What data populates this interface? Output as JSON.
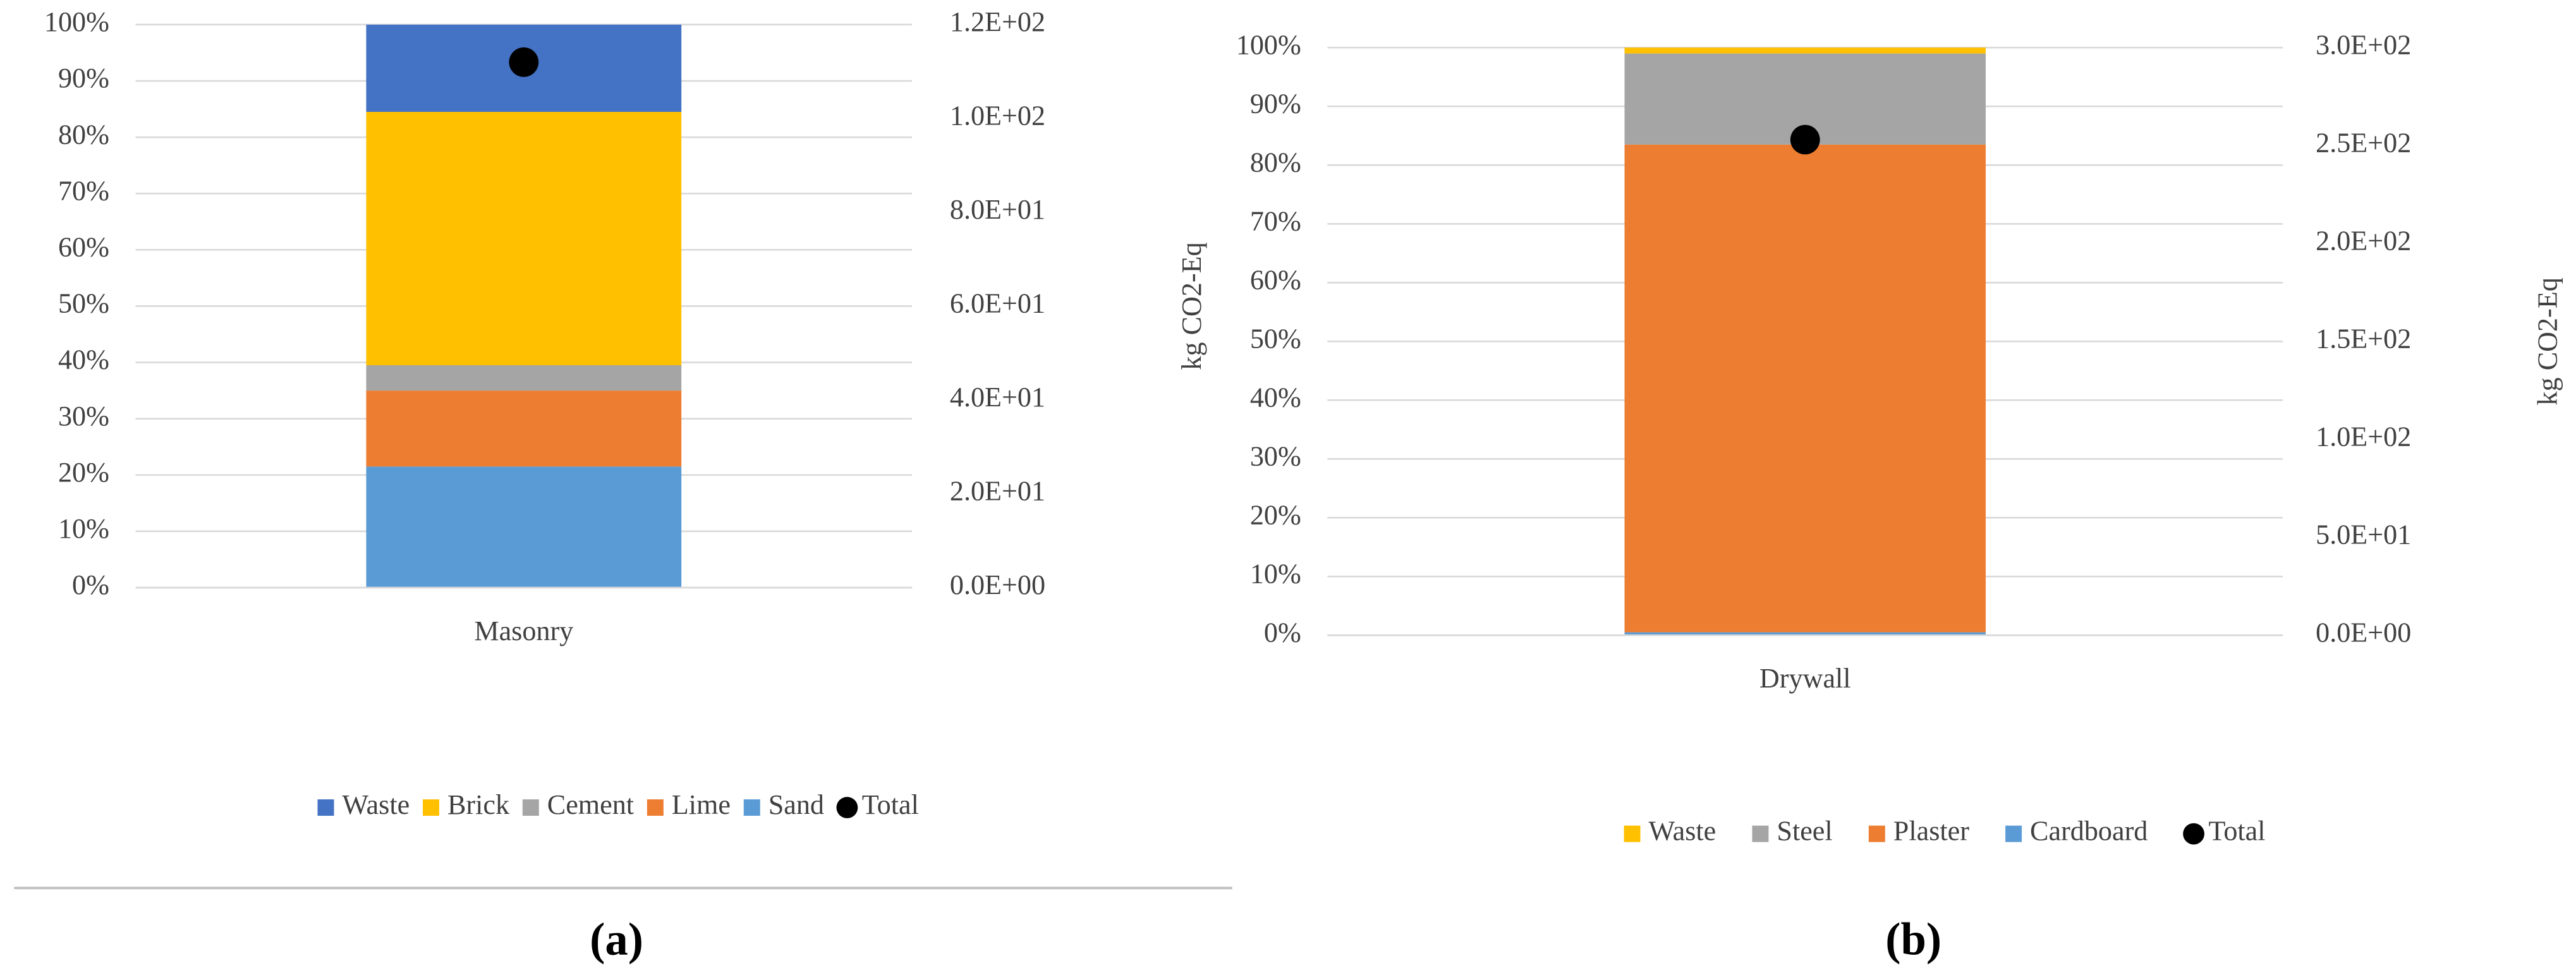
{
  "chart_data": [
    {
      "type": "bar",
      "stacked": true,
      "caption": "(a)",
      "y2label": "kg CO2-Eq",
      "categories": [
        "Masonry"
      ],
      "series": [
        {
          "name": "Waste",
          "color": "#4472c4",
          "values": [
            15.5
          ]
        },
        {
          "name": "Brick",
          "color": "#ffc000",
          "values": [
            45
          ]
        },
        {
          "name": "Cement",
          "color": "#a5a5a5",
          "values": [
            4.5
          ]
        },
        {
          "name": "Lime",
          "color": "#ed7d31",
          "values": [
            13.5
          ]
        },
        {
          "name": "Sand",
          "color": "#5b9bd5",
          "values": [
            21.5
          ]
        },
        {
          "name": "Total",
          "color": "#000000",
          "axis": "y2",
          "values": [
            112
          ]
        }
      ],
      "ylim": [
        0,
        100
      ],
      "yticks": [
        {
          "value": 0,
          "label": "0%"
        },
        {
          "value": 10,
          "label": "10%"
        },
        {
          "value": 20,
          "label": "20%"
        },
        {
          "value": 30,
          "label": "30%"
        },
        {
          "value": 40,
          "label": "40%"
        },
        {
          "value": 50,
          "label": "50%"
        },
        {
          "value": 60,
          "label": "60%"
        },
        {
          "value": 70,
          "label": "70%"
        },
        {
          "value": 80,
          "label": "80%"
        },
        {
          "value": 90,
          "label": "90%"
        },
        {
          "value": 100,
          "label": "100%"
        }
      ],
      "y2lim": [
        0,
        120
      ],
      "y2ticks": [
        {
          "value": 0,
          "label": "0.0E+00"
        },
        {
          "value": 20,
          "label": "2.0E+01"
        },
        {
          "value": 40,
          "label": "4.0E+01"
        },
        {
          "value": 60,
          "label": "6.0E+01"
        },
        {
          "value": 80,
          "label": "8.0E+01"
        },
        {
          "value": 100,
          "label": "1.0E+02"
        },
        {
          "value": 120,
          "label": "1.2E+02"
        }
      ],
      "grid": true
    },
    {
      "type": "bar",
      "stacked": true,
      "caption": "(b)",
      "y2label": "kg CO2-Eq",
      "categories": [
        "Drywall"
      ],
      "series": [
        {
          "name": "Waste",
          "color": "#ffc000",
          "values": [
            1
          ]
        },
        {
          "name": "Steel",
          "color": "#a5a5a5",
          "values": [
            15.5
          ]
        },
        {
          "name": "Plaster",
          "color": "#ed7d31",
          "values": [
            83
          ]
        },
        {
          "name": "Cardboard",
          "color": "#5b9bd5",
          "values": [
            0.5
          ]
        },
        {
          "name": "Total",
          "color": "#000000",
          "axis": "y2",
          "values": [
            253
          ]
        }
      ],
      "ylim": [
        0,
        100
      ],
      "yticks": [
        {
          "value": 0,
          "label": "0%"
        },
        {
          "value": 10,
          "label": "10%"
        },
        {
          "value": 20,
          "label": "20%"
        },
        {
          "value": 30,
          "label": "30%"
        },
        {
          "value": 40,
          "label": "40%"
        },
        {
          "value": 50,
          "label": "50%"
        },
        {
          "value": 60,
          "label": "60%"
        },
        {
          "value": 70,
          "label": "70%"
        },
        {
          "value": 80,
          "label": "80%"
        },
        {
          "value": 90,
          "label": "90%"
        },
        {
          "value": 100,
          "label": "100%"
        }
      ],
      "y2lim": [
        0,
        300
      ],
      "y2ticks": [
        {
          "value": 0,
          "label": "0.0E+00"
        },
        {
          "value": 50,
          "label": "5.0E+01"
        },
        {
          "value": 100,
          "label": "1.0E+02"
        },
        {
          "value": 150,
          "label": "1.5E+02"
        },
        {
          "value": 200,
          "label": "2.0E+02"
        },
        {
          "value": 250,
          "label": "2.5E+02"
        },
        {
          "value": 300,
          "label": "3.0E+02"
        }
      ],
      "grid": true
    }
  ]
}
